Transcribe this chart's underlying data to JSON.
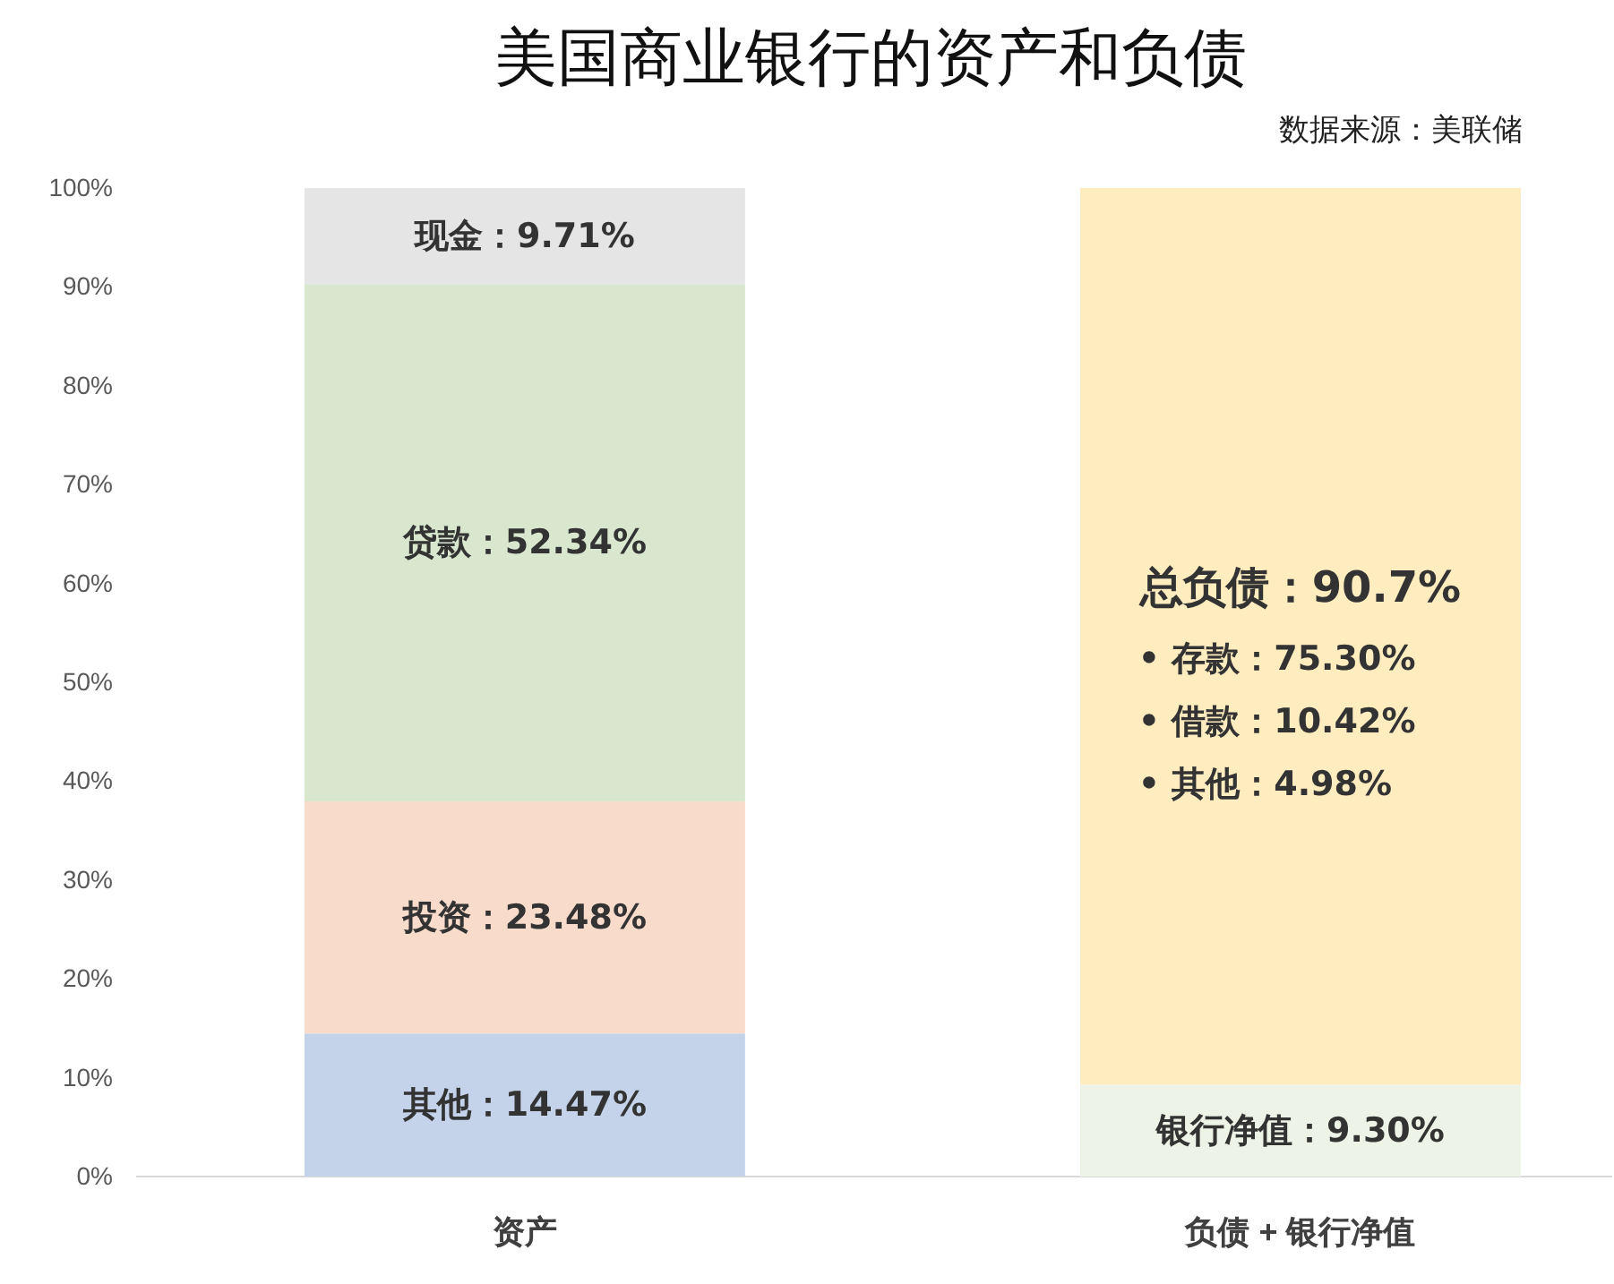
{
  "chart_data": {
    "type": "bar",
    "title": "美国商业银行的资产和负债",
    "categories": [
      "资产",
      "负债 + 银行净值"
    ],
    "stacked": true,
    "series": [
      {
        "color": "#c5d3ea",
        "values": [
          14.47,
          null
        ],
        "value_labels": [
          "其他：14.47%",
          null
        ]
      },
      {
        "color": "#f8dbcb",
        "values": [
          23.48,
          null
        ],
        "value_labels": [
          "投资：23.48%",
          null
        ]
      },
      {
        "color": "#d9e7cf",
        "values": [
          52.34,
          null
        ],
        "value_labels": [
          "贷款：52.34%",
          null
        ]
      },
      {
        "color": "#e5e5e5",
        "values": [
          9.71,
          null
        ],
        "value_labels": [
          "现金：9.71%",
          null
        ]
      },
      {
        "color": "#edf4e7",
        "values": [
          null,
          9.3
        ],
        "value_labels": [
          null,
          "银行净值：9.30%"
        ]
      },
      {
        "color": "#ffedc0",
        "values": [
          null,
          90.7
        ],
        "value_labels": [
          null,
          "总负债：90.7%"
        ]
      }
    ],
    "ylim": [
      0,
      100
    ],
    "yticks": [
      {
        "value": 0,
        "label": "0%"
      },
      {
        "value": 10,
        "label": "10%"
      },
      {
        "value": 20,
        "label": "20%"
      },
      {
        "value": 30,
        "label": "30%"
      },
      {
        "value": 40,
        "label": "40%"
      },
      {
        "value": 50,
        "label": "50%"
      },
      {
        "value": 60,
        "label": "60%"
      },
      {
        "value": 70,
        "label": "70%"
      },
      {
        "value": 80,
        "label": "80%"
      },
      {
        "value": 90,
        "label": "90%"
      },
      {
        "value": 100,
        "label": "100%"
      }
    ],
    "annotations": [
      "数据来源：美联储",
      "• 存款：75.30%",
      "• 借款：10.42%",
      "• 其他：4.98%"
    ]
  }
}
